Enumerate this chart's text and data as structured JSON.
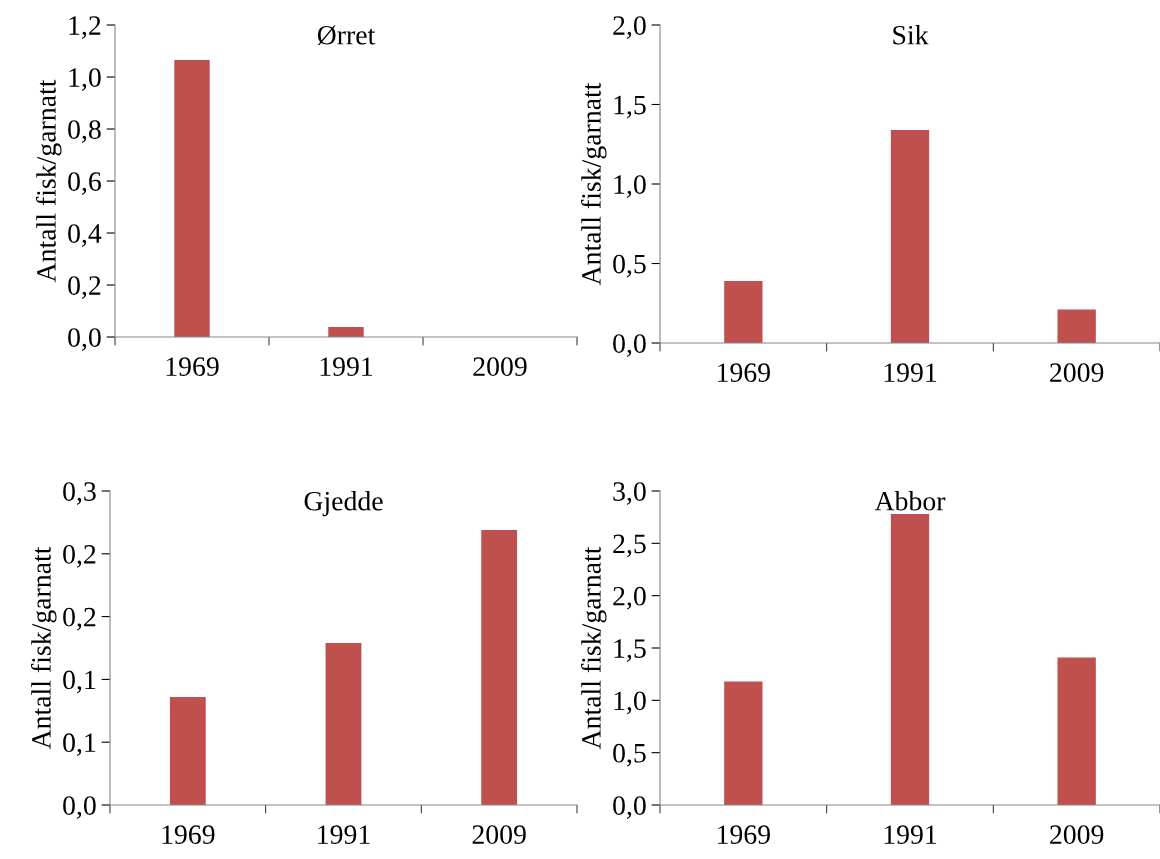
{
  "chart_data": [
    {
      "type": "bar",
      "title": "Ørret",
      "ylabel": "Antall fisk/garnatt",
      "categories": [
        "1969",
        "1991",
        "2009"
      ],
      "values": [
        1.065,
        0.038,
        0
      ],
      "color": "#c0504d",
      "ylim": [
        0,
        1.2
      ],
      "yticks": [
        {
          "value": 0,
          "label": "0,0"
        },
        {
          "value": 0.2,
          "label": "0,2"
        },
        {
          "value": 0.4,
          "label": "0,4"
        },
        {
          "value": 0.6,
          "label": "0,6"
        },
        {
          "value": 0.8,
          "label": "0,8"
        },
        {
          "value": 1.0,
          "label": "1,0"
        },
        {
          "value": 1.2,
          "label": "1,2"
        }
      ],
      "grid": false,
      "legend": false
    },
    {
      "type": "bar",
      "title": "Sik",
      "ylabel": "Antall fisk/garnatt",
      "categories": [
        "1969",
        "1991",
        "2009"
      ],
      "values": [
        0.39,
        1.34,
        0.21
      ],
      "color": "#c0504d",
      "ylim": [
        0,
        2.0
      ],
      "yticks": [
        {
          "value": 0,
          "label": "0,0"
        },
        {
          "value": 0.5,
          "label": "0,5"
        },
        {
          "value": 1.0,
          "label": "1,0"
        },
        {
          "value": 1.5,
          "label": "1,5"
        },
        {
          "value": 2.0,
          "label": "2,0"
        }
      ],
      "grid": false,
      "legend": false
    },
    {
      "type": "bar",
      "title": "Gjedde",
      "ylabel": "Antall fisk/garnatt",
      "categories": [
        "1969",
        "1991",
        "2009"
      ],
      "values": [
        0.086,
        0.129,
        0.219
      ],
      "color": "#c0504d",
      "ylim": [
        0,
        0.25
      ],
      "yticks": [
        {
          "value": 0,
          "label": "0,0"
        },
        {
          "value": 0.05,
          "label": "0,1"
        },
        {
          "value": 0.1,
          "label": "0,1"
        },
        {
          "value": 0.15,
          "label": "0,2"
        },
        {
          "value": 0.2,
          "label": "0,2"
        },
        {
          "value": 0.25,
          "label": "0,3"
        }
      ],
      "grid": false,
      "legend": false
    },
    {
      "type": "bar",
      "title": "Abbor",
      "ylabel": "Antall fisk/garnatt",
      "categories": [
        "1969",
        "1991",
        "2009"
      ],
      "values": [
        1.18,
        2.78,
        1.41
      ],
      "color": "#c0504d",
      "ylim": [
        0,
        3.0
      ],
      "yticks": [
        {
          "value": 0,
          "label": "0,0"
        },
        {
          "value": 0.5,
          "label": "0,5"
        },
        {
          "value": 1.0,
          "label": "1,0"
        },
        {
          "value": 1.5,
          "label": "1,5"
        },
        {
          "value": 2.0,
          "label": "2,0"
        },
        {
          "value": 2.5,
          "label": "2,5"
        },
        {
          "value": 3.0,
          "label": "3,0"
        }
      ],
      "grid": false,
      "legend": false
    }
  ]
}
